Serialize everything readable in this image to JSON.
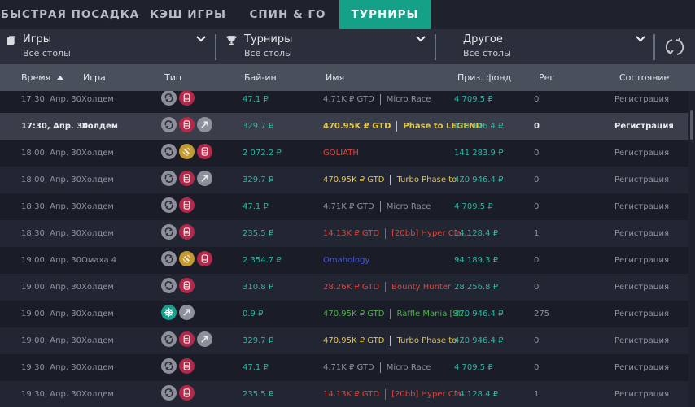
{
  "tabs": [
    {
      "label": "БЫСТРАЯ ПОСАДКА",
      "active": false
    },
    {
      "label": "КЭШ ИГРЫ",
      "active": false
    },
    {
      "label": "СПИН & ГО",
      "active": false
    },
    {
      "label": "ТУРНИРЫ",
      "active": true
    }
  ],
  "filters": [
    {
      "title": "Игры",
      "value": "Все столы",
      "icon": "cards-icon"
    },
    {
      "title": "Турниры",
      "value": "Все столы",
      "icon": "trophy-icon"
    },
    {
      "title": "Другое",
      "value": "Все столы",
      "icon": "none"
    }
  ],
  "refresh_icon": "refresh-icon",
  "columns": {
    "time": "Время",
    "game": "Игра",
    "type": "Тип",
    "buyin": "Бай-ин",
    "name": "Имя",
    "prize": "Приз. фонд",
    "reg": "Рег",
    "status": "Состояние"
  },
  "sort": {
    "column": "time",
    "direction": "asc"
  },
  "colors": {
    "accent": "#15a088",
    "money": "#2fb5a3",
    "gold": "#e5c544",
    "red": "#e0453a",
    "green": "#4fae4a",
    "blue": "#4457d8",
    "grey": "#8e929c"
  },
  "rows": [
    {
      "time": "17:30, Апр. 30",
      "game": "Холдем",
      "icons": [
        "reentry",
        "knockout"
      ],
      "buyin": "47.1 ₽",
      "gtd": "4.71K ₽  GTD",
      "title": "Micro Race",
      "name_color": "#8e929c",
      "prize": "4 709.5 ₽",
      "reg": "0",
      "status": "Регистрация"
    },
    {
      "time": "17:30, Апр. 30",
      "game": "Холдем",
      "icons": [
        "reentry",
        "knockout",
        "turbo"
      ],
      "buyin": "329.7 ₽",
      "gtd": "470.95K ₽  GTD",
      "title": "Phase to LEGEND",
      "name_color": "#e5c544",
      "prize": "470 946.4 ₽",
      "reg": "0",
      "status": "Регистрация",
      "selected": true
    },
    {
      "time": "18:00, Апр. 30",
      "game": "Холдем",
      "icons": [
        "reentry",
        "satellite",
        "knockout"
      ],
      "buyin": "2 072.2 ₽",
      "gtd": "",
      "title": "GOLIATH",
      "name_color": "#e0453a",
      "prize": "141 283.9 ₽",
      "reg": "0",
      "status": "Регистрация"
    },
    {
      "time": "18:00, Апр. 30",
      "game": "Холдем",
      "icons": [
        "reentry",
        "knockout",
        "turbo"
      ],
      "buyin": "329.7 ₽",
      "gtd": "470.95K ₽  GTD",
      "title": "Turbo Phase to ...",
      "name_color": "#e5c544",
      "prize": "470 946.4 ₽",
      "reg": "0",
      "status": "Регистрация"
    },
    {
      "time": "18:30, Апр. 30",
      "game": "Холдем",
      "icons": [
        "reentry",
        "knockout"
      ],
      "buyin": "47.1 ₽",
      "gtd": "4.71K ₽  GTD",
      "title": "Micro Race",
      "name_color": "#8e929c",
      "prize": "4 709.5 ₽",
      "reg": "0",
      "status": "Регистрация"
    },
    {
      "time": "18:30, Апр. 30",
      "game": "Холдем",
      "icons": [
        "reentry",
        "knockout"
      ],
      "buyin": "235.5 ₽",
      "gtd": "14.13K ₽  GTD",
      "title": "[20bb] Hyper Cla...",
      "name_color": "#e0453a",
      "prize": "14 128.4 ₽",
      "reg": "1",
      "status": "Регистрация"
    },
    {
      "time": "19:00, Апр. 30",
      "game": "Омаха 4",
      "icons": [
        "reentry",
        "satellite",
        "knockout"
      ],
      "buyin": "2 354.7 ₽",
      "gtd": "",
      "title": "Omahology",
      "name_color": "#4457d8",
      "prize": "94 189.3 ₽",
      "reg": "0",
      "status": "Регистрация"
    },
    {
      "time": "19:00, Апр. 30",
      "game": "Холдем",
      "icons": [
        "reentry",
        "knockout"
      ],
      "buyin": "310.8 ₽",
      "gtd": "28.26K ₽  GTD",
      "title": "Bounty Hunter",
      "name_color": "#e0453a",
      "prize": "28 256.8 ₽",
      "reg": "0",
      "status": "Регистрация"
    },
    {
      "time": "19:00, Апр. 30",
      "game": "Холдем",
      "icons": [
        "freeze",
        "turbo"
      ],
      "buyin": "0.9 ₽",
      "gtd": "470.95K ₽  GTD",
      "title": "Raffle Mania [St...",
      "name_color": "#4fae4a",
      "prize": "470 946.4 ₽",
      "reg": "275",
      "status": "Регистрация"
    },
    {
      "time": "19:00, Апр. 30",
      "game": "Холдем",
      "icons": [
        "reentry",
        "knockout",
        "turbo"
      ],
      "buyin": "329.7 ₽",
      "gtd": "470.95K ₽  GTD",
      "title": "Turbo Phase to ...",
      "name_color": "#e5c544",
      "prize": "470 946.4 ₽",
      "reg": "0",
      "status": "Регистрация"
    },
    {
      "time": "19:30, Апр. 30",
      "game": "Холдем",
      "icons": [
        "reentry",
        "knockout"
      ],
      "buyin": "47.1 ₽",
      "gtd": "4.71K ₽  GTD",
      "title": "Micro Race",
      "name_color": "#8e929c",
      "prize": "4 709.5 ₽",
      "reg": "0",
      "status": "Регистрация"
    },
    {
      "time": "19:30, Апр. 30",
      "game": "Холдем",
      "icons": [
        "reentry",
        "knockout"
      ],
      "buyin": "235.5 ₽",
      "gtd": "14.13K ₽  GTD",
      "title": "[20bb] Hyper Cla...",
      "name_color": "#e0453a",
      "prize": "14 128.4 ₽",
      "reg": "1",
      "status": "Регистрация"
    }
  ]
}
